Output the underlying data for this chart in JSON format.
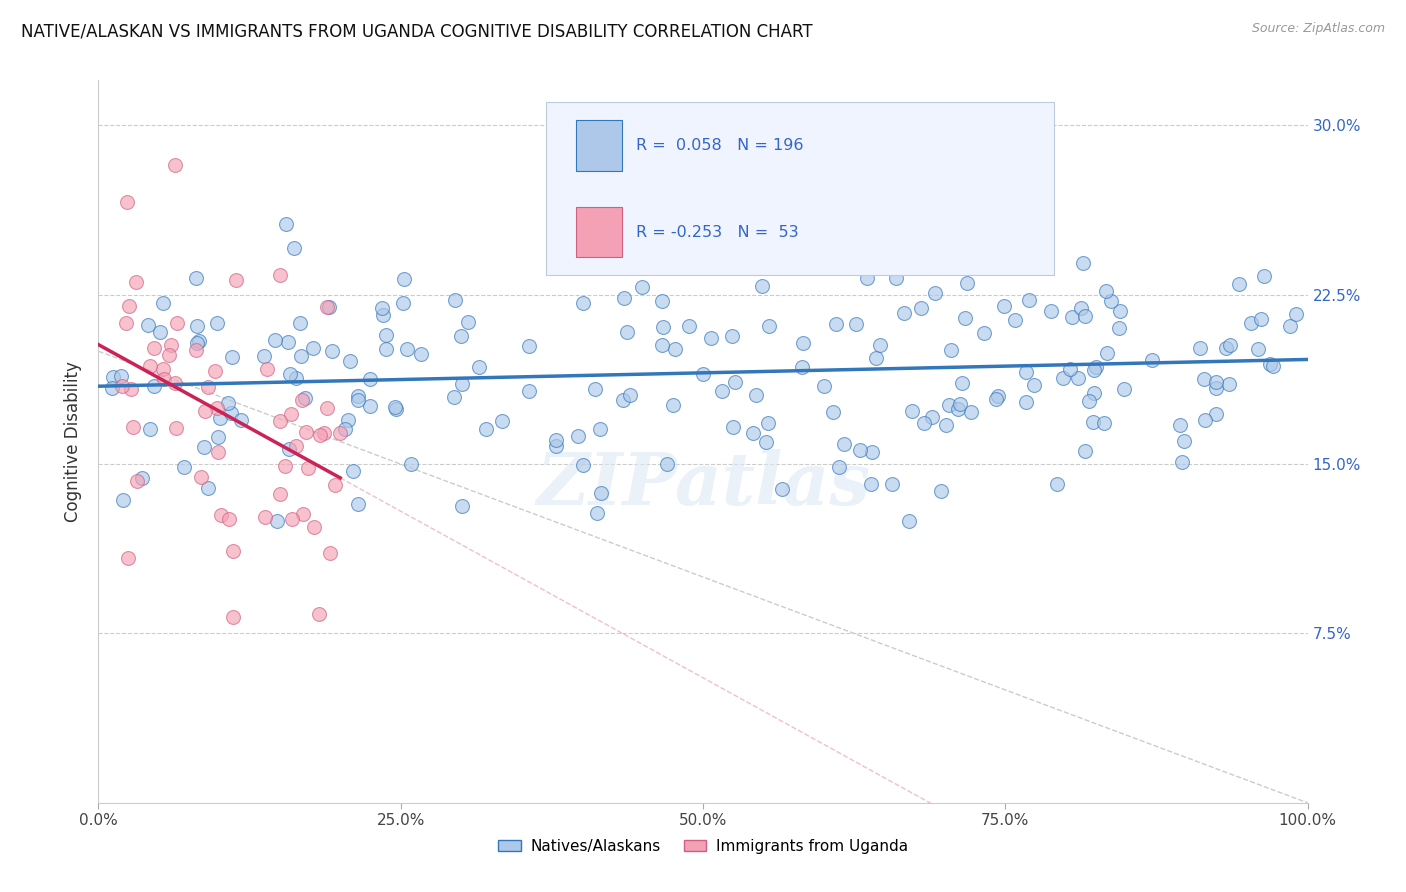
{
  "title": "NATIVE/ALASKAN VS IMMIGRANTS FROM UGANDA COGNITIVE DISABILITY CORRELATION CHART",
  "source": "Source: ZipAtlas.com",
  "ylabel": "Cognitive Disability",
  "r_native": 0.058,
  "n_native": 196,
  "r_uganda": -0.253,
  "n_uganda": 53,
  "xlim": [
    0.0,
    100.0
  ],
  "ylim": [
    0.0,
    32.0
  ],
  "yticks": [
    7.5,
    15.0,
    22.5,
    30.0
  ],
  "ytick_labels": [
    "7.5%",
    "15.0%",
    "22.5%",
    "30.0%"
  ],
  "xticks": [
    0,
    25,
    50,
    75,
    100
  ],
  "xtick_labels": [
    "0.0%",
    "25.0%",
    "50.0%",
    "75.0%",
    "100.0%"
  ],
  "color_native": "#adc8e8",
  "color_native_line": "#3377bb",
  "color_uganda": "#f4a0b5",
  "color_uganda_line": "#cc2255",
  "background_color": "#ffffff",
  "grid_color": "#cccccc",
  "watermark": "ZIPatlas",
  "legend_box_color": "#f0f4ff",
  "legend_border_color": "#bbccdd"
}
